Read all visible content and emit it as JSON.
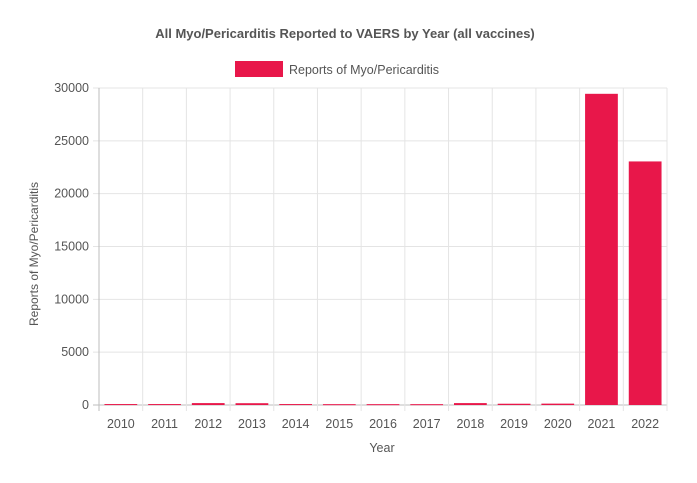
{
  "chart_data": {
    "type": "bar",
    "title": "All Myo/Pericarditis Reported to VAERS by Year (all vaccines)",
    "xlabel": "Year",
    "ylabel": "Reports of Myo/Pericarditis",
    "legend": {
      "position": "top",
      "label": "Reports of Myo/Pericarditis"
    },
    "categories": [
      "2010",
      "2011",
      "2012",
      "2013",
      "2014",
      "2015",
      "2016",
      "2017",
      "2018",
      "2019",
      "2020",
      "2021",
      "2022"
    ],
    "series": [
      {
        "name": "Reports of Myo/Pericarditis",
        "color": "#e8174a",
        "values": [
          90,
          90,
          180,
          170,
          90,
          80,
          80,
          80,
          180,
          120,
          130,
          29450,
          23050
        ]
      }
    ],
    "ylim": [
      0,
      30000
    ],
    "yticks": [
      0,
      5000,
      10000,
      15000,
      20000,
      25000,
      30000
    ],
    "grid": true
  }
}
